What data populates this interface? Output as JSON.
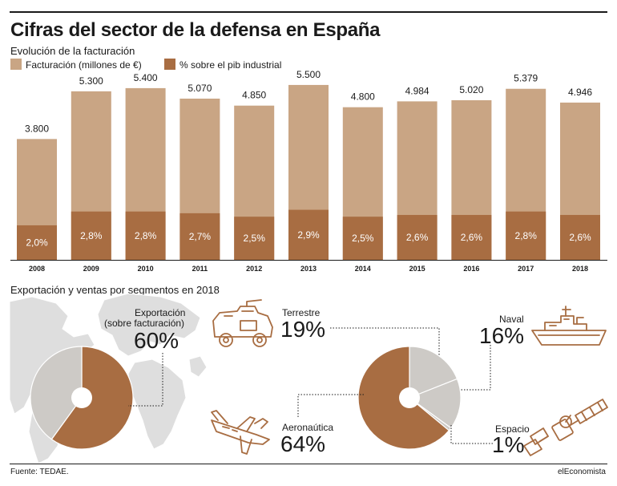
{
  "header": {
    "title": "Cifras del sector de la defensa en España",
    "subtitle": "Evolución de la facturación"
  },
  "legend": {
    "revenue_label": "Facturación (millones de €)",
    "share_label": "% sobre el pib industrial"
  },
  "colors": {
    "revenue": "#c9a584",
    "share": "#a86d42",
    "pie_gray": "#cdcac6",
    "map_gray": "#dedede"
  },
  "chart_data": [
    {
      "type": "bar",
      "categories": [
        "2008",
        "2009",
        "2010",
        "2011",
        "2012",
        "2013",
        "2014",
        "2015",
        "2016",
        "2017",
        "2018"
      ],
      "series": [
        {
          "name": "Facturación (millones de €)",
          "values": [
            3800,
            5300,
            5400,
            5070,
            4850,
            5500,
            4800,
            4984,
            5020,
            5379,
            4946
          ],
          "labels": [
            "3.800",
            "5.300",
            "5.400",
            "5.070",
            "4.850",
            "5.500",
            "4.800",
            "4.984",
            "5.020",
            "5.379",
            "4.946"
          ]
        },
        {
          "name": "% sobre el pib industrial",
          "values": [
            2.0,
            2.8,
            2.8,
            2.7,
            2.5,
            2.9,
            2.5,
            2.6,
            2.6,
            2.8,
            2.6
          ],
          "labels": [
            "2,0%",
            "2,8%",
            "2,8%",
            "2,7%",
            "2,5%",
            "2,9%",
            "2,5%",
            "2,6%",
            "2,6%",
            "2,8%",
            "2,6%"
          ]
        }
      ],
      "ylim": [
        0,
        5700
      ],
      "share_ylim": [
        0,
        10.5
      ],
      "grid": false,
      "legend_position": "top-left"
    },
    {
      "type": "pie",
      "title": "Exportación (sobre facturación)",
      "slices": [
        {
          "label": "Exportación",
          "value": 60,
          "value_label": "60%"
        },
        {
          "label": "",
          "value": 40
        }
      ]
    },
    {
      "type": "pie",
      "slices": [
        {
          "label": "Terrestre",
          "value": 19,
          "value_label": "19%"
        },
        {
          "label": "Naval",
          "value": 16,
          "value_label": "16%"
        },
        {
          "label": "Espacio",
          "value": 1,
          "value_label": "1%"
        },
        {
          "label": "Aeronaútica",
          "value": 64,
          "value_label": "64%"
        }
      ]
    }
  ],
  "section2": {
    "title": "Exportación y ventas por segmentos en 2018"
  },
  "export": {
    "label_line1": "Exportación",
    "label_line2": "(sobre facturación)",
    "value": "60%"
  },
  "segments": {
    "terrestre": {
      "label": "Terrestre",
      "value": "19%"
    },
    "naval": {
      "label": "Naval",
      "value": "16%"
    },
    "espacio": {
      "label": "Espacio",
      "value": "1%"
    },
    "aero": {
      "label": "Aeronaútica",
      "value": "64%"
    }
  },
  "icons": [
    "tank-icon",
    "ship-icon",
    "airplane-icon",
    "satellite-icon",
    "world-map-icon"
  ],
  "footer": {
    "source": "Fuente: TEDAE.",
    "brand": "elEconomista"
  }
}
